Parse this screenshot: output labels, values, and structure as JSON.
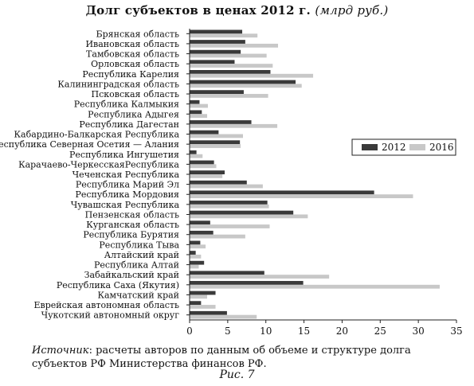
{
  "chart_data": {
    "type": "bar",
    "orientation": "horizontal",
    "title": "Долг субъектов в ценах 2012 г.",
    "unit": "(млрд руб.)",
    "categories": [
      "Брянская область",
      "Ивановская область",
      "Тамбовская область",
      "Орловская область",
      "Республика Карелия",
      "Калининградская область",
      "Псковская область",
      "Республика Калмыкия",
      "Республика Адыгея",
      "Республика Дагестан",
      "Кабардино-Балкарская Республика",
      "Республика Северная Осетия — Алания",
      "Республика Ингушетия",
      "Карачаево-ЧеркесскаяРеспублика",
      "Чеченская Республика",
      "Республика Марий Эл",
      "Республика Мордовия",
      "Чувашская Республика",
      "Пензенская область",
      "Курганская область",
      "Республика Бурятия",
      "Республика Тыва",
      "Алтайский край",
      "Республика Алтай",
      "Забайкальский край",
      "Республика Саха (Якутия)",
      "Камчатский край",
      "Еврейская автономная область",
      "Чукотский автономный округ"
    ],
    "series": [
      {
        "name": "2012",
        "color": "#3a3a3a",
        "values": [
          6.9,
          7.3,
          6.7,
          5.9,
          10.6,
          13.9,
          7.1,
          1.3,
          1.6,
          8.1,
          3.8,
          6.6,
          0.9,
          3.2,
          4.6,
          7.5,
          24.2,
          10.2,
          13.6,
          2.7,
          3.1,
          1.4,
          0.8,
          1.9,
          9.8,
          14.9,
          3.4,
          1.5,
          4.9
        ]
      },
      {
        "name": "2016",
        "color": "#c8c8c8",
        "values": [
          8.9,
          11.6,
          10.1,
          10.9,
          16.2,
          14.7,
          10.3,
          2.4,
          2.3,
          11.5,
          7.0,
          6.7,
          1.7,
          3.5,
          4.3,
          9.6,
          29.3,
          10.4,
          15.5,
          10.5,
          7.3,
          2.1,
          1.5,
          1.2,
          18.3,
          32.8,
          2.3,
          3.4,
          8.8
        ]
      }
    ],
    "xlim": [
      0,
      35
    ],
    "xticks": [
      0,
      5,
      10,
      15,
      20,
      25,
      30,
      35
    ],
    "legend": "right",
    "grid": false
  },
  "source": {
    "lead": "Источник",
    "text": ": расчеты авторов по данным об объеме и структуре долга субъектов РФ Министерства финансов РФ."
  },
  "caption": "Рис. 7"
}
